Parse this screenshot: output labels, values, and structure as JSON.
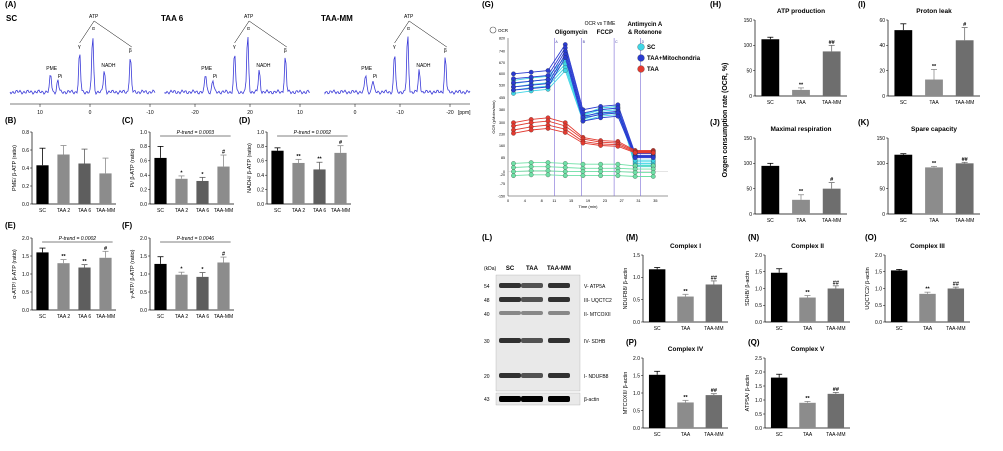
{
  "figure": {
    "labels": {
      "A": "(A)",
      "B": "(B)",
      "C": "(C)",
      "D": "(D)",
      "E": "(E)",
      "F": "(F)",
      "G": "(G)",
      "H": "(H)",
      "I": "(I)",
      "J": "(J)",
      "K": "(K)",
      "L": "(L)",
      "M": "(M)",
      "N": "(N)",
      "O": "(O)",
      "P": "(P)",
      "Q": "(Q)"
    },
    "nmr": {
      "panels": [
        "SC",
        "TAA 6",
        "TAA-MM"
      ],
      "peaks": [
        "PME",
        "Pi",
        "γ",
        "α",
        "ATP",
        "NADH",
        "β"
      ],
      "axis_ticks": [
        "20",
        "10",
        "0",
        "-10",
        "-20"
      ],
      "axis_unit": "[ppm]",
      "color": "#3a3ad8"
    },
    "ocr": {
      "title": "OCR vs TIME",
      "legend_marker": "OCR",
      "injections": [
        "Oligomycin",
        "FCCP",
        "Antimycin A\n& Rotenone"
      ],
      "injection_letters": [
        "A",
        "B",
        "C",
        "D"
      ],
      "xlabel": "Time (min)",
      "ylabel": "OCR (pMoles/min)",
      "xticks": [
        "0",
        "4",
        "8",
        "11",
        "15",
        "19",
        "23",
        "27",
        "31",
        "35"
      ],
      "yticks": [
        "-150",
        "-75",
        "-20",
        "0",
        "85",
        "160",
        "230",
        "300",
        "380",
        "455",
        "530",
        "600",
        "670",
        "740",
        "820"
      ]
    },
    "western": {
      "kda_header": "(kDa)",
      "lanes": [
        "SC",
        "TAA",
        "TAA-MM"
      ],
      "rows": [
        {
          "kda": "54",
          "label": "V- ATP5A"
        },
        {
          "kda": "48",
          "label": "III- UQCTC2"
        },
        {
          "kda": "40",
          "label": "II- MTCOXII"
        },
        {
          "kda": "30",
          "label": "IV- SDHB"
        },
        {
          "kda": "20",
          "label": "I- NDUFB8"
        },
        {
          "kda": "43",
          "label": "β-actin"
        }
      ]
    },
    "shared": {
      "ocr_axis_label": "Oxgen consumption rate (OCR, %)"
    }
  },
  "chart_data": [
    {
      "id": "B",
      "type": "bar",
      "categories": [
        "SC",
        "TAA 2",
        "TAA 6",
        "TAA-MM"
      ],
      "values": [
        0.43,
        0.55,
        0.45,
        0.34
      ],
      "errors": [
        0.19,
        0.1,
        0.16,
        0.17
      ],
      "sig": [
        "",
        "",
        "",
        ""
      ],
      "ylabel": "PME/ β-ATP (ratio)",
      "ylim": [
        0,
        0.8
      ],
      "yticks": [
        "0.0",
        "0.2",
        "0.4",
        "0.6",
        "0.8"
      ],
      "trend": ""
    },
    {
      "id": "C",
      "type": "bar",
      "categories": [
        "SC",
        "TAA 2",
        "TAA 6",
        "TAA-MM"
      ],
      "values": [
        0.64,
        0.35,
        0.32,
        0.52
      ],
      "errors": [
        0.16,
        0.04,
        0.05,
        0.16
      ],
      "sig": [
        "",
        "*",
        "*",
        "#"
      ],
      "ylabel": "Pi/ β-ATP (ratio)",
      "ylim": [
        0,
        1.0
      ],
      "yticks": [
        "0.0",
        "0.2",
        "0.4",
        "0.6",
        "0.8",
        "1.0"
      ],
      "trend": "P-trend = 0.0003"
    },
    {
      "id": "D",
      "type": "bar",
      "categories": [
        "SC",
        "TAA 2",
        "TAA 6",
        "TAA-MM"
      ],
      "values": [
        0.74,
        0.57,
        0.48,
        0.71
      ],
      "errors": [
        0.04,
        0.05,
        0.1,
        0.1
      ],
      "sig": [
        "",
        "**",
        "**",
        "#"
      ],
      "ylabel": "NADH/ β-ATP (ratio)",
      "ylim": [
        0,
        1.0
      ],
      "yticks": [
        "0.0",
        "0.2",
        "0.4",
        "0.6",
        "0.8",
        "1.0"
      ],
      "trend": "P-trend = 0.0002"
    },
    {
      "id": "E",
      "type": "bar",
      "categories": [
        "SC",
        "TAA 2",
        "TAA 6",
        "TAA-MM"
      ],
      "values": [
        1.6,
        1.3,
        1.18,
        1.45
      ],
      "errors": [
        0.12,
        0.1,
        0.08,
        0.18
      ],
      "sig": [
        "",
        "**",
        "**",
        "#"
      ],
      "ylabel": "α-ATP/ β-ATP (ratio)",
      "ylim": [
        0,
        2.0
      ],
      "yticks": [
        "0.0",
        "0.5",
        "1.0",
        "1.5",
        "2.0"
      ],
      "trend": "P-trend = 0.0002"
    },
    {
      "id": "F",
      "type": "bar",
      "categories": [
        "SC",
        "TAA 2",
        "TAA 6",
        "TAA-MM"
      ],
      "values": [
        1.28,
        0.98,
        0.92,
        1.32
      ],
      "errors": [
        0.2,
        0.07,
        0.12,
        0.15
      ],
      "sig": [
        "",
        "*",
        "*",
        "#"
      ],
      "ylabel": "γ-ATP/ β-ATP (ratio)",
      "ylim": [
        0,
        2.0
      ],
      "yticks": [
        "0.0",
        "0.5",
        "1.0",
        "1.5",
        "2.0"
      ],
      "trend": "P-trend = 0.0046"
    },
    {
      "id": "H",
      "type": "bar",
      "title": "ATP production",
      "categories": [
        "SC",
        "TAA",
        "TAA-MM"
      ],
      "values": [
        112,
        12,
        88
      ],
      "errors": [
        4,
        4,
        12
      ],
      "sig": [
        "",
        "**",
        "##"
      ],
      "ylabel": "",
      "ylim": [
        0,
        150
      ],
      "yticks": [
        "0",
        "50",
        "100",
        "150"
      ],
      "trend": ""
    },
    {
      "id": "I",
      "type": "bar",
      "title": "Proton leak",
      "categories": [
        "SC",
        "TAA",
        "TAA-MM"
      ],
      "values": [
        52,
        13,
        44
      ],
      "errors": [
        5,
        8,
        10
      ],
      "sig": [
        "",
        "**",
        "#"
      ],
      "ylabel": "",
      "ylim": [
        0,
        60
      ],
      "yticks": [
        "0",
        "20",
        "40",
        "60"
      ],
      "trend": ""
    },
    {
      "id": "J",
      "type": "bar",
      "title": "Maximal respiration",
      "categories": [
        "SC",
        "TAA",
        "TAA-MM"
      ],
      "values": [
        95,
        28,
        50
      ],
      "errors": [
        5,
        10,
        12
      ],
      "sig": [
        "",
        "**",
        "#"
      ],
      "ylabel": "",
      "ylim": [
        0,
        150
      ],
      "yticks": [
        "0",
        "50",
        "100",
        "150"
      ],
      "trend": ""
    },
    {
      "id": "K",
      "type": "bar",
      "title": "Spare capacity",
      "categories": [
        "SC",
        "TAA",
        "TAA-MM"
      ],
      "values": [
        117,
        92,
        100
      ],
      "errors": [
        2,
        2,
        2
      ],
      "sig": [
        "",
        "**",
        "##"
      ],
      "ylabel": "",
      "ylim": [
        0,
        150
      ],
      "yticks": [
        "0",
        "50",
        "100",
        "150"
      ],
      "trend": ""
    },
    {
      "id": "M",
      "type": "bar",
      "title": "Complex I",
      "categories": [
        "SC",
        "TAA",
        "TAA-MM"
      ],
      "values": [
        1.18,
        0.57,
        0.84
      ],
      "errors": [
        0.04,
        0.05,
        0.08
      ],
      "sig": [
        "",
        "**",
        "##"
      ],
      "ylabel": "NDUFB8/ β-actin",
      "ylim": [
        0,
        1.5
      ],
      "yticks": [
        "0.0",
        "0.5",
        "1.0",
        "1.5"
      ],
      "trend": ""
    },
    {
      "id": "N",
      "type": "bar",
      "title": "Complex II",
      "categories": [
        "SC",
        "TAA",
        "TAA-MM"
      ],
      "values": [
        1.47,
        0.73,
        1.0
      ],
      "errors": [
        0.12,
        0.06,
        0.08
      ],
      "sig": [
        "",
        "**",
        "##"
      ],
      "ylabel": "SDHB/ β-actin",
      "ylim": [
        0,
        2.0
      ],
      "yticks": [
        "0.0",
        "0.5",
        "1.0",
        "1.5",
        "2.0"
      ],
      "trend": ""
    },
    {
      "id": "O",
      "type": "bar",
      "title": "Complex III",
      "categories": [
        "SC",
        "TAA",
        "TAA-MM"
      ],
      "values": [
        1.54,
        0.84,
        1.0
      ],
      "errors": [
        0.03,
        0.05,
        0.04
      ],
      "sig": [
        "",
        "**",
        "##"
      ],
      "ylabel": "UQCTC2/ β-actin",
      "ylim": [
        0,
        2.0
      ],
      "yticks": [
        "0.0",
        "0.5",
        "1.0",
        "1.5",
        "2.0"
      ],
      "trend": ""
    },
    {
      "id": "P",
      "type": "bar",
      "title": "Complex IV",
      "categories": [
        "SC",
        "TAA",
        "TAA-MM"
      ],
      "values": [
        1.52,
        0.73,
        0.94
      ],
      "errors": [
        0.1,
        0.06,
        0.04
      ],
      "sig": [
        "",
        "**",
        "##"
      ],
      "ylabel": "MTCOXII/ β-actin",
      "ylim": [
        0,
        2.0
      ],
      "yticks": [
        "0.0",
        "0.5",
        "1.0",
        "1.5",
        "2.0"
      ],
      "trend": ""
    },
    {
      "id": "Q",
      "type": "bar",
      "title": "Complex V",
      "categories": [
        "SC",
        "TAA",
        "TAA-MM"
      ],
      "values": [
        1.8,
        0.9,
        1.22
      ],
      "errors": [
        0.12,
        0.05,
        0.05
      ],
      "sig": [
        "",
        "**",
        "##"
      ],
      "ylabel": "ATP5A/ β-actin",
      "ylim": [
        0,
        2.5
      ],
      "yticks": [
        "0.0",
        "0.5",
        "1.0",
        "1.5",
        "2.0",
        "2.5"
      ],
      "trend": ""
    },
    {
      "id": "G",
      "type": "line",
      "title": "OCR vs TIME",
      "x": [
        1.3,
        5.5,
        9.5,
        13.6,
        17.8,
        22,
        26.1,
        30.2,
        34.5
      ],
      "series": [
        {
          "name": "SC",
          "color": "#3fd6e6",
          "replicates": [
            [
              560,
              575,
              585,
              700,
              350,
              390,
              400,
              30,
              30
            ],
            [
              540,
              555,
              565,
              680,
              345,
              380,
              390,
              40,
              40
            ],
            [
              520,
              535,
              545,
              660,
              330,
              370,
              380,
              50,
              50
            ],
            [
              500,
              515,
              525,
              640,
              320,
              355,
              365,
              60,
              60
            ],
            [
              480,
              495,
              505,
              620,
              310,
              340,
              350,
              70,
              70
            ]
          ]
        },
        {
          "name": "TAA+Mitochondria",
          "color": "#2a3bd0",
          "replicates": [
            [
              600,
              610,
              620,
              780,
              380,
              400,
              410,
              110,
              110
            ],
            [
              570,
              580,
              590,
              760,
              360,
              380,
              390,
              100,
              100
            ],
            [
              545,
              555,
              565,
              740,
              340,
              360,
              370,
              95,
              95
            ],
            [
              520,
              530,
              540,
              720,
              330,
              350,
              360,
              90,
              90
            ],
            [
              500,
              510,
              520,
              700,
              310,
              330,
              340,
              85,
              85
            ]
          ]
        },
        {
          "name": "TAA",
          "color": "#e33a30",
          "replicates": [
            [
              300,
              320,
              330,
              300,
              210,
              190,
              185,
              130,
              130
            ],
            [
              280,
              300,
              310,
              280,
              200,
              180,
              175,
              125,
              125
            ],
            [
              255,
              275,
              285,
              260,
              185,
              170,
              165,
              120,
              120
            ],
            [
              235,
              255,
              265,
              240,
              175,
              160,
              155,
              115,
              115
            ]
          ]
        },
        {
          "name": "",
          "color": "#6fe0a6",
          "replicates": [
            [
              50,
              55,
              55,
              50,
              45,
              45,
              45,
              35,
              35
            ],
            [
              25,
              30,
              30,
              25,
              20,
              20,
              20,
              15,
              15
            ],
            [
              0,
              5,
              5,
              0,
              0,
              0,
              0,
              -5,
              -5
            ],
            [
              -25,
              -20,
              -20,
              -25,
              -25,
              -25,
              -25,
              -30,
              -30
            ]
          ]
        }
      ],
      "legend": [
        "SC",
        "TAA+Mitochondria",
        "TAA"
      ],
      "legend_colors": [
        "#3fd6e6",
        "#2a3bd0",
        "#e33a30"
      ],
      "ylim": [
        -150,
        820
      ],
      "xlim": [
        0,
        38
      ]
    }
  ]
}
